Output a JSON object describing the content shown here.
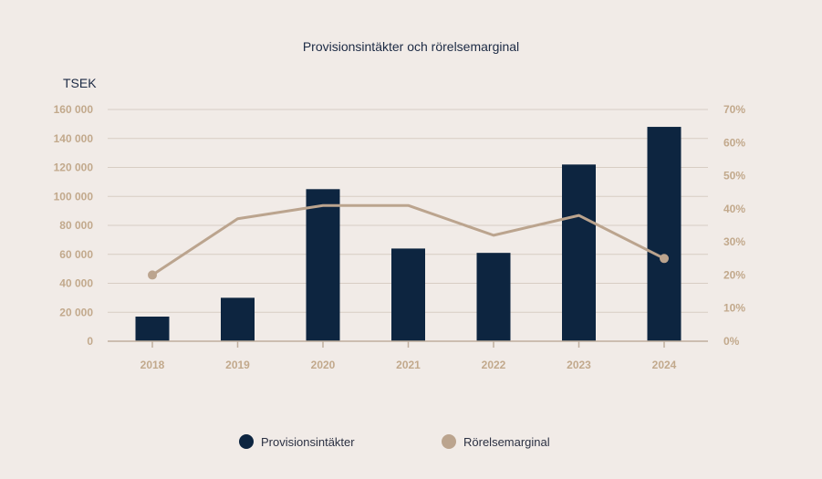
{
  "chart_data": {
    "type": "bar",
    "title": "Provisionsintäkter och rörelsemarginal",
    "ylabel": "TSEK",
    "categories": [
      "2018",
      "2019",
      "2020",
      "2021",
      "2022",
      "2023",
      "2024"
    ],
    "series": [
      {
        "name": "Provisionsintäkter",
        "type": "bar",
        "axis": "left",
        "color": "#0d2540",
        "values": [
          17000,
          30000,
          105000,
          64000,
          61000,
          122000,
          148000
        ]
      },
      {
        "name": "Rörelsemarginal",
        "type": "line",
        "axis": "right",
        "color": "#bba48e",
        "values": [
          0.2,
          0.37,
          0.41,
          0.41,
          0.32,
          0.38,
          0.25
        ]
      }
    ],
    "ylim": [
      0,
      160000
    ],
    "y2lim": [
      0,
      0.7
    ],
    "yticks": [
      "0",
      "20 000",
      "40 000",
      "60 000",
      "80 000",
      "100 000",
      "120 000",
      "140 000",
      "160 000"
    ],
    "y2ticks": [
      "0%",
      "10%",
      "20%",
      "30%",
      "40%",
      "50%",
      "60%",
      "70%"
    ],
    "grid": true,
    "legend": "bottom"
  }
}
